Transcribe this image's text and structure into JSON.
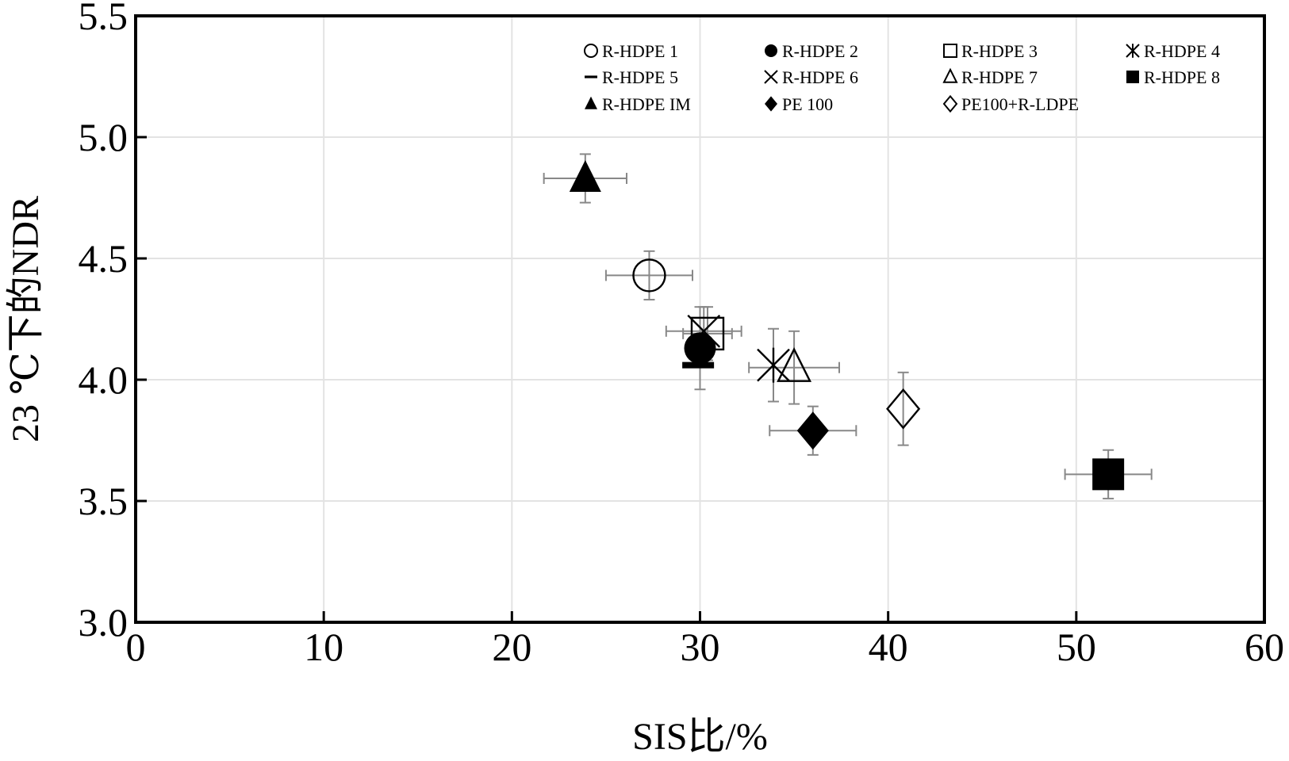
{
  "chart_data": {
    "type": "scatter",
    "xlabel": "SIS比/%",
    "ylabel": "23 ℃下的NDR",
    "xlim": [
      0,
      60
    ],
    "ylim": [
      3.0,
      5.5
    ],
    "xticks": [
      0,
      10,
      20,
      30,
      40,
      50,
      60
    ],
    "xtick_labels": [
      "0",
      "10",
      "20",
      "30",
      "40",
      "50",
      "60"
    ],
    "yticks": [
      3.0,
      3.5,
      4.0,
      4.5,
      5.0,
      5.5
    ],
    "ytick_labels": [
      "3.0",
      "3.5",
      "4.0",
      "4.5",
      "5.0",
      "5.5"
    ],
    "grid": true,
    "legend_position": "top-right",
    "series": [
      {
        "name": "R-HDPE 1",
        "marker": "circle-open",
        "x": 27.3,
        "y": 4.43,
        "x_err": 2.3,
        "y_err": 0.1
      },
      {
        "name": "R-HDPE 2",
        "marker": "circle-filled",
        "x": 30.0,
        "y": 4.13,
        "x_err": 0,
        "y_err": 0.17
      },
      {
        "name": "R-HDPE 3",
        "marker": "square-open",
        "x": 30.4,
        "y": 4.19,
        "x_err": 1.3,
        "y_err": 0.11
      },
      {
        "name": "R-HDPE 4",
        "marker": "asterisk",
        "x": 33.9,
        "y": 4.06,
        "x_err": 0,
        "y_err": 0.15
      },
      {
        "name": "R-HDPE 5",
        "marker": "dash",
        "x": 29.9,
        "y": 4.06,
        "x_err": 0,
        "y_err": 0
      },
      {
        "name": "R-HDPE 6",
        "marker": "x",
        "x": 30.2,
        "y": 4.2,
        "x_err": 2.0,
        "y_err": 0.1
      },
      {
        "name": "R-HDPE 7",
        "marker": "triangle-open",
        "x": 35.0,
        "y": 4.05,
        "x_err": 2.4,
        "y_err": 0.15
      },
      {
        "name": "R-HDPE 8",
        "marker": "square-filled",
        "x": 51.7,
        "y": 3.61,
        "x_err": 2.3,
        "y_err": 0.1
      },
      {
        "name": "R-HDPE IM",
        "marker": "triangle-filled",
        "x": 23.9,
        "y": 4.83,
        "x_err": 2.2,
        "y_err": 0.1
      },
      {
        "name": "PE 100",
        "marker": "diamond-filled",
        "x": 36.0,
        "y": 3.79,
        "x_err": 2.3,
        "y_err": 0.1
      },
      {
        "name": "PE100+R-LDPE",
        "marker": "diamond-open",
        "x": 40.8,
        "y": 3.88,
        "x_err": 0,
        "y_err": 0.15
      }
    ]
  }
}
